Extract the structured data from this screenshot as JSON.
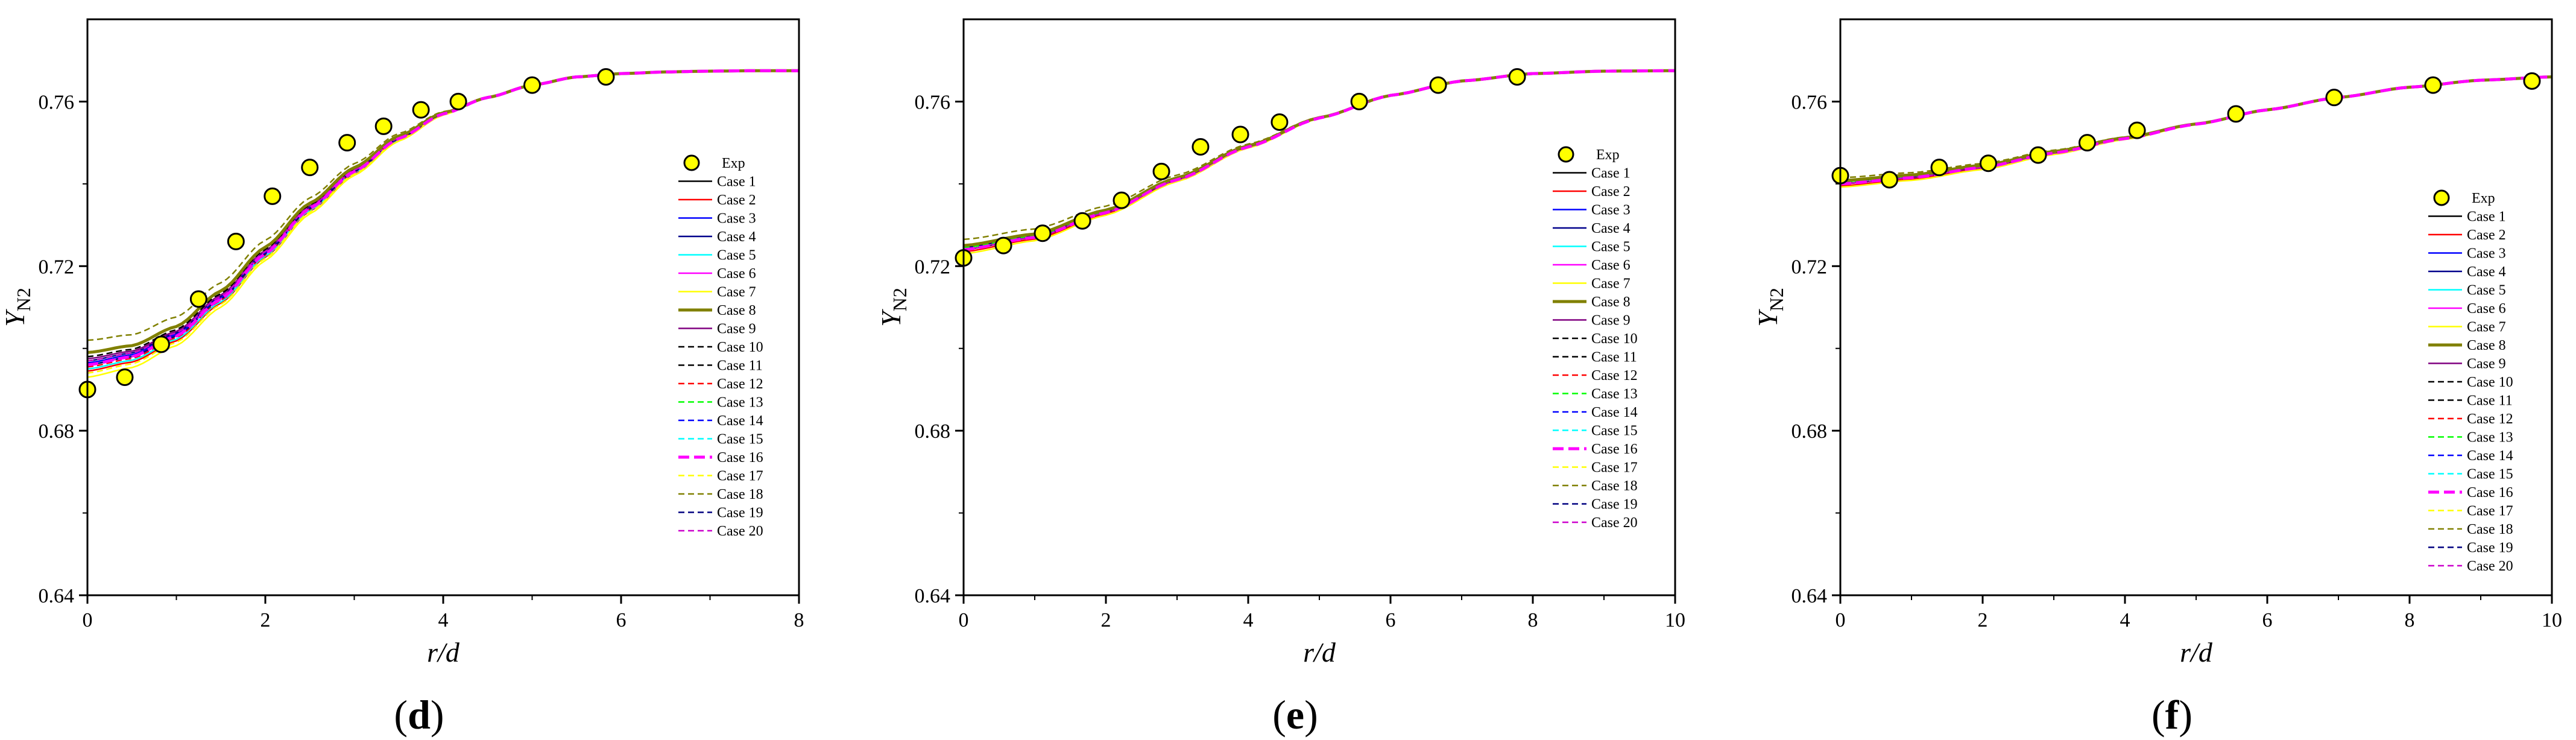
{
  "chart_data": [
    {
      "type": "line",
      "panel_label": "(d)",
      "panel_letter": "d",
      "xlabel": "r/d",
      "ylabel": "Y_N2",
      "xlim": [
        0,
        8
      ],
      "ylim": [
        0.64,
        0.78
      ],
      "xticks": [
        0,
        2,
        4,
        6,
        8
      ],
      "yticks": [
        0.64,
        0.68,
        0.72,
        0.76
      ],
      "legend_position": "right-middle",
      "exp": {
        "name": "Exp",
        "x": [
          0.0,
          0.42,
          0.83,
          1.25,
          1.67,
          2.08,
          2.5,
          2.92,
          3.33,
          3.75,
          4.17,
          5.0,
          5.83
        ],
        "y": [
          0.69,
          0.693,
          0.701,
          0.712,
          0.726,
          0.737,
          0.744,
          0.75,
          0.754,
          0.758,
          0.76,
          0.764,
          0.766
        ]
      },
      "model_curve": {
        "x": [
          0,
          0.5,
          1.0,
          1.5,
          2.0,
          2.5,
          3.0,
          3.5,
          4.0,
          4.5,
          5.0,
          5.5,
          6.0,
          6.5,
          7.0,
          7.5,
          8.0
        ],
        "y": [
          0.696,
          0.698,
          0.703,
          0.712,
          0.723,
          0.734,
          0.743,
          0.751,
          0.757,
          0.761,
          0.764,
          0.766,
          0.7668,
          0.7672,
          0.7674,
          0.7675,
          0.7675
        ]
      },
      "case_offsets": [
        0.0,
        -0.0015,
        0.0005,
        0.001,
        -0.001,
        0.0,
        -0.003,
        0.003,
        0.0015,
        0.002,
        0.0,
        -0.0005,
        0.001,
        0.0005,
        0.0,
        0.0,
        -0.002,
        0.006,
        0.0,
        0.001
      ]
    },
    {
      "type": "line",
      "panel_label": "(e)",
      "panel_letter": "e",
      "xlabel": "r/d",
      "ylabel": "Y_N2",
      "xlim": [
        0,
        10
      ],
      "ylim": [
        0.64,
        0.78
      ],
      "xticks": [
        0,
        2,
        4,
        6,
        8,
        10
      ],
      "yticks": [
        0.64,
        0.68,
        0.72,
        0.76
      ],
      "legend_position": "right-middle",
      "exp": {
        "name": "Exp",
        "x": [
          0.0,
          0.56,
          1.11,
          1.67,
          2.22,
          2.78,
          3.33,
          3.89,
          4.44,
          5.56,
          6.67,
          7.78
        ],
        "y": [
          0.722,
          0.725,
          0.728,
          0.731,
          0.736,
          0.743,
          0.749,
          0.752,
          0.755,
          0.76,
          0.764,
          0.766
        ]
      },
      "model_curve": {
        "x": [
          0,
          1,
          2,
          3,
          4,
          5,
          6,
          7,
          8,
          9,
          10
        ],
        "y": [
          0.724,
          0.727,
          0.733,
          0.741,
          0.749,
          0.756,
          0.7615,
          0.765,
          0.7668,
          0.7674,
          0.7675
        ]
      },
      "case_offsets": [
        0.0,
        -0.0005,
        0.0,
        0.0005,
        0.0,
        0.0,
        -0.001,
        0.001,
        0.0,
        0.0005,
        0.0,
        0.0,
        0.0005,
        0.0,
        0.0,
        0.0,
        0.0,
        0.0025,
        0.0,
        0.0
      ]
    },
    {
      "type": "line",
      "panel_label": "(f)",
      "panel_letter": "f",
      "xlabel": "r/d",
      "ylabel": "Y_N2",
      "xlim": [
        0,
        10
      ],
      "ylim": [
        0.64,
        0.78
      ],
      "xticks": [
        0,
        2,
        4,
        6,
        8,
        10
      ],
      "yticks": [
        0.64,
        0.68,
        0.72,
        0.76
      ],
      "legend_position": "lower-right",
      "exp": {
        "name": "Exp",
        "x": [
          0.0,
          0.69,
          1.39,
          2.08,
          2.78,
          3.47,
          4.17,
          5.56,
          6.94,
          8.33,
          9.72
        ],
        "y": [
          0.742,
          0.741,
          0.744,
          0.745,
          0.747,
          0.75,
          0.753,
          0.757,
          0.761,
          0.764,
          0.765
        ]
      },
      "model_curve": {
        "x": [
          0,
          1,
          2,
          3,
          4,
          5,
          6,
          7,
          8,
          9,
          10
        ],
        "y": [
          0.74,
          0.7415,
          0.744,
          0.7475,
          0.751,
          0.7545,
          0.758,
          0.761,
          0.7635,
          0.7652,
          0.766
        ]
      },
      "case_offsets": [
        0.0,
        -0.0005,
        0.0,
        0.0005,
        0.0,
        0.0,
        -0.0008,
        0.0008,
        0.0,
        0.0005,
        0.0,
        0.0,
        0.0005,
        0.0,
        0.0,
        0.0,
        0.0,
        0.0015,
        0.0,
        0.0
      ]
    }
  ],
  "series_styles": [
    {
      "name": "Case 1",
      "color": "#000000",
      "dash": "solid",
      "width": 2.5
    },
    {
      "name": "Case 2",
      "color": "#ff0000",
      "dash": "solid",
      "width": 2.5
    },
    {
      "name": "Case 3",
      "color": "#0000ff",
      "dash": "solid",
      "width": 2.5
    },
    {
      "name": "Case 4",
      "color": "#00008b",
      "dash": "solid",
      "width": 2.5
    },
    {
      "name": "Case 5",
      "color": "#00ffff",
      "dash": "solid",
      "width": 2.5
    },
    {
      "name": "Case 6",
      "color": "#ff00ff",
      "dash": "solid",
      "width": 2.5
    },
    {
      "name": "Case 7",
      "color": "#ffff00",
      "dash": "solid",
      "width": 2.5
    },
    {
      "name": "Case 8",
      "color": "#808000",
      "dash": "solid",
      "width": 5
    },
    {
      "name": "Case 9",
      "color": "#800080",
      "dash": "solid",
      "width": 2.5
    },
    {
      "name": "Case 10",
      "color": "#000000",
      "dash": "dash",
      "width": 2.5
    },
    {
      "name": "Case 11",
      "color": "#000000",
      "dash": "dash",
      "width": 2.5
    },
    {
      "name": "Case 12",
      "color": "#ff0000",
      "dash": "dash",
      "width": 2.5
    },
    {
      "name": "Case 13",
      "color": "#00ff00",
      "dash": "dash",
      "width": 2.5
    },
    {
      "name": "Case 14",
      "color": "#0000ff",
      "dash": "dash",
      "width": 2.5
    },
    {
      "name": "Case 15",
      "color": "#00ffff",
      "dash": "dash",
      "width": 2.5
    },
    {
      "name": "Case 16",
      "color": "#ff00ff",
      "dash": "dash",
      "width": 5
    },
    {
      "name": "Case 17",
      "color": "#ffff00",
      "dash": "dash",
      "width": 2.5
    },
    {
      "name": "Case 18",
      "color": "#808000",
      "dash": "dash",
      "width": 2.5
    },
    {
      "name": "Case 19",
      "color": "#000080",
      "dash": "dash",
      "width": 2.5
    },
    {
      "name": "Case 20",
      "color": "#cc00cc",
      "dash": "dash",
      "width": 2.5
    }
  ],
  "exp_style": {
    "fill": "#ffff00",
    "stroke": "#000000"
  }
}
